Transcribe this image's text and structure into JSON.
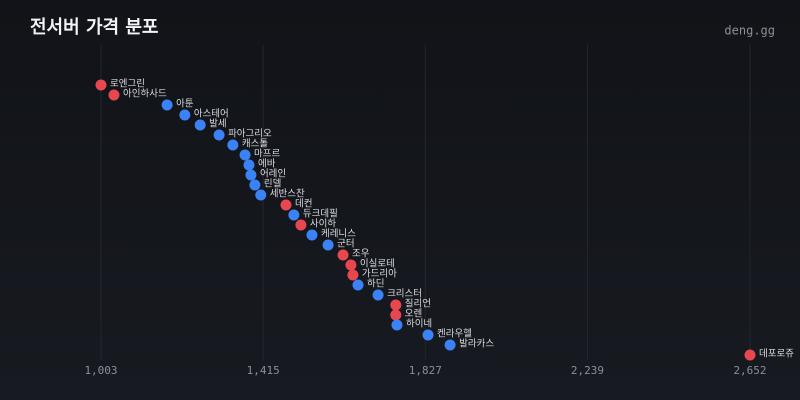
{
  "chart_data": {
    "type": "dot",
    "title": "전서버 가격 분포",
    "source": "deng.gg",
    "categories": [
      "로엔그린",
      "아인하사드",
      "아툰",
      "아스테어",
      "발세",
      "파아그리오",
      "캐스톨",
      "마프르",
      "에바",
      "어레인",
      "린델",
      "세반스찬",
      "데컨",
      "듀크데필",
      "사이하",
      "케레니스",
      "군터",
      "조우",
      "이실로테",
      "가드리아",
      "하딘",
      "크리스터",
      "질리언",
      "오렌",
      "하이네",
      "켄라우헬",
      "발라카스",
      "데포로쥬"
    ],
    "values": [
      1003,
      1036,
      1171,
      1216,
      1255,
      1303,
      1338,
      1369,
      1379,
      1384,
      1394,
      1409,
      1473,
      1493,
      1511,
      1539,
      1580,
      1618,
      1638,
      1643,
      1656,
      1707,
      1752,
      1752,
      1755,
      1834,
      1890,
      2652
    ],
    "colors": [
      "#e8474f",
      "#e8474f",
      "#3b82f6",
      "#3b82f6",
      "#3b82f6",
      "#3b82f6",
      "#3b82f6",
      "#3b82f6",
      "#3b82f6",
      "#3b82f6",
      "#3b82f6",
      "#3b82f6",
      "#e8474f",
      "#3b82f6",
      "#e8474f",
      "#3b82f6",
      "#3b82f6",
      "#e8474f",
      "#e8474f",
      "#e8474f",
      "#3b82f6",
      "#3b82f6",
      "#e8474f",
      "#e8474f",
      "#3b82f6",
      "#3b82f6",
      "#3b82f6",
      "#e8474f"
    ],
    "xlim": [
      1003,
      2652
    ],
    "xticks": [
      {
        "value": 1003,
        "label": "1,003"
      },
      {
        "value": 1415,
        "label": "1,415"
      },
      {
        "value": 1827,
        "label": "1,827"
      },
      {
        "value": 2239,
        "label": "2,239"
      },
      {
        "value": 2652,
        "label": "2,652"
      }
    ],
    "grid": true
  }
}
